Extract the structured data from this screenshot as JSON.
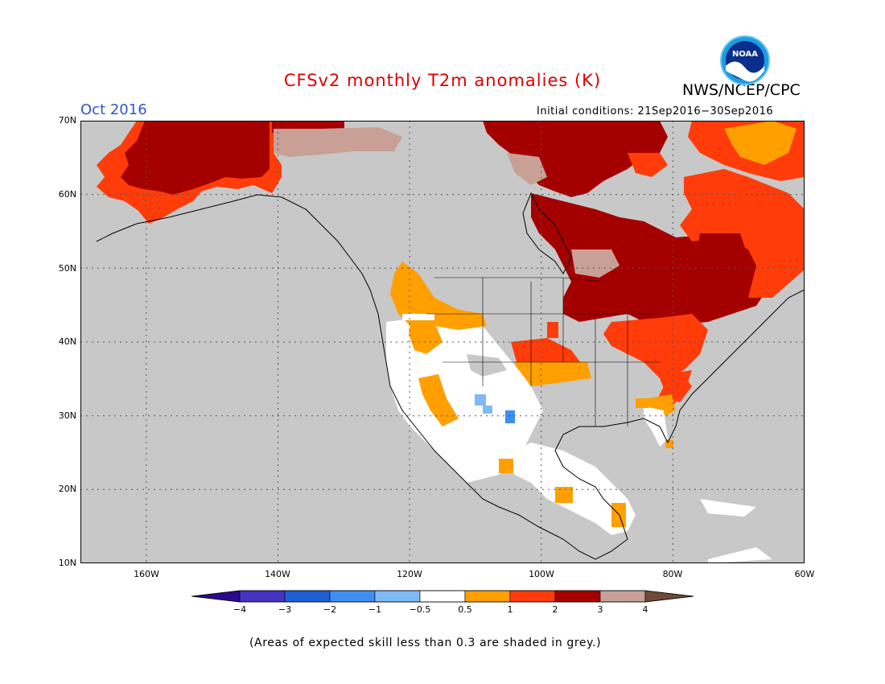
{
  "header": {
    "title": "CFSv2 monthly T2m anomalies (K)",
    "agency": "NWS/NCEP/CPC",
    "period": "Oct 2016",
    "initial_conditions": "Initial conditions: 21Sep2016−30Sep2016",
    "logo_text": "NOAA"
  },
  "map": {
    "lat_labels": [
      "70N",
      "60N",
      "50N",
      "40N",
      "30N",
      "20N",
      "10N"
    ],
    "lon_labels": [
      "160W",
      "140W",
      "120W",
      "100W",
      "80W",
      "60W"
    ],
    "lat_range": [
      10,
      70
    ],
    "lon_range": [
      -170,
      -60
    ],
    "grid": "dotted",
    "background_color": "#c8c8c8",
    "regions": [
      {
        "name": "Alaska",
        "category": "2 to 3"
      },
      {
        "name": "Hudson Bay / Northern Quebec",
        "category": "2 to 3"
      },
      {
        "name": "Eastern Canada / Labrador",
        "category": "1 to 2"
      },
      {
        "name": "Great Lakes / Northeast US",
        "category": "2 to 3"
      },
      {
        "name": "Southwest US / Mexico",
        "category": "-0.5 to 0.5"
      },
      {
        "name": "Texas / Northern Mexico spots",
        "category": "-1 to -0.5"
      }
    ]
  },
  "colorbar": {
    "labels": [
      "−4",
      "−3",
      "−2",
      "−1",
      "−0.5",
      "0.5",
      "1",
      "2",
      "3",
      "4"
    ],
    "colors": [
      "#2b0a8c",
      "#4533c2",
      "#1f5fd6",
      "#3d8ef0",
      "#7fbaf5",
      "#ffffff",
      "#ffa000",
      "#ff3c0a",
      "#a50000",
      "#c8a096",
      "#6e4a38"
    ]
  },
  "footnote": "(Areas of expected skill less than 0.3 are shaded in grey.)"
}
